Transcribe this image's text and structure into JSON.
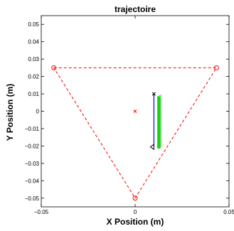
{
  "chart_data": {
    "type": "scatter",
    "title": "trajectoire",
    "xlabel": "X Position (m)",
    "ylabel": "Y Position (m)",
    "xlim": [
      -0.05,
      0.05
    ],
    "ylim": [
      -0.055,
      0.055
    ],
    "xticks": [
      -0.05,
      0,
      0.05
    ],
    "xtick_labels": [
      "−0.05",
      "0",
      "0.05"
    ],
    "yticks": [
      0.05,
      0.04,
      0.03,
      0.02,
      0.01,
      0,
      -0.01,
      -0.02,
      -0.03,
      -0.04,
      -0.05
    ],
    "ytick_labels": [
      "0.05",
      "0.04",
      "0.03",
      "0.02",
      "0.01",
      "0",
      "−0.01",
      "−0.02",
      "−0.03",
      "−0.04",
      "−0.05"
    ],
    "grid": false,
    "colors": {
      "triangle": "#ff0000",
      "trajectory": "#0000ff",
      "band": "#00cc00",
      "axes": "#000000"
    },
    "triangle": {
      "vertices": [
        [
          -0.0433,
          0.025
        ],
        [
          0.0433,
          0.025
        ],
        [
          0.0,
          -0.05
        ]
      ],
      "marker": "circle",
      "line_style": "dashed"
    },
    "center": {
      "x": 0.0,
      "y": 0.0,
      "marker": "x"
    },
    "start_point": {
      "x": 0.01,
      "y": 0.01,
      "marker": "x"
    },
    "end_point": {
      "x": 0.01,
      "y": -0.0205,
      "marker": "triangle-left"
    },
    "trajectory": {
      "x": [
        0.01,
        0.01,
        0.01,
        0.01,
        0.01,
        0.01,
        0.01,
        0.01
      ],
      "y": [
        0.01,
        0.005,
        0.0,
        -0.005,
        -0.01,
        -0.015,
        -0.019,
        -0.0205
      ]
    },
    "green_band": {
      "x_start": 0.0118,
      "x_end": 0.0135,
      "y_top": 0.0085,
      "y_bottom": -0.0215
    }
  }
}
